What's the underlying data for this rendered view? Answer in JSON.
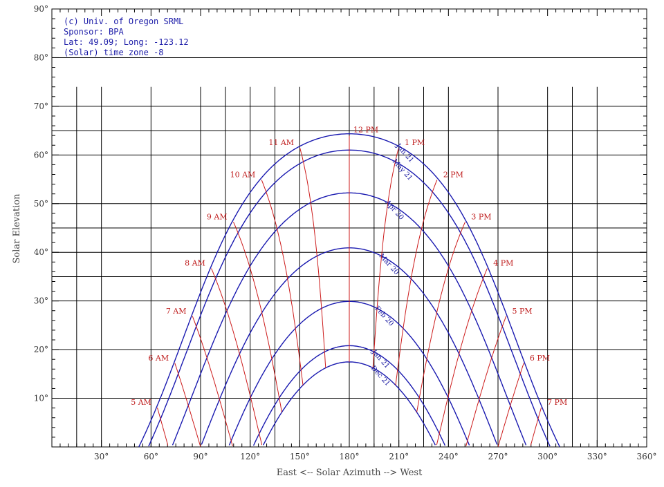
{
  "info": {
    "line1": "(c) Univ. of Oregon SRML",
    "line2": "Sponsor: BPA",
    "line3": "Lat: 49.09; Long: -123.12",
    "line4": "(Solar) time zone -8"
  },
  "chart_data": {
    "type": "line",
    "title": "",
    "xlabel": "East <-- Solar Azimuth --> West",
    "ylabel": "Solar Elevation",
    "xlim": [
      0,
      360
    ],
    "ylim": [
      0,
      90
    ],
    "xticks": [
      30,
      60,
      90,
      120,
      150,
      180,
      210,
      240,
      270,
      300,
      330,
      360
    ],
    "yticks": [
      10,
      20,
      30,
      40,
      50,
      60,
      70,
      80,
      90
    ],
    "degree_symbol": "°",
    "latitude": 49.09,
    "date_series": [
      {
        "name": "Jun 21",
        "declination": 23.44,
        "color": "#1a1ab0"
      },
      {
        "name": "May 21",
        "declination": 20.1,
        "color": "#1a1ab0"
      },
      {
        "name": "Apr 20",
        "declination": 11.3,
        "color": "#1a1ab0"
      },
      {
        "name": "Mar 20",
        "declination": 0.0,
        "color": "#1a1ab0"
      },
      {
        "name": "Feb 20",
        "declination": -11.0,
        "color": "#1a1ab0"
      },
      {
        "name": "Jan 21",
        "declination": -20.1,
        "color": "#1a1ab0"
      },
      {
        "name": "Dec 21",
        "declination": -23.44,
        "color": "#1a1ab0"
      }
    ],
    "hour_series": [
      {
        "name": "5 AM",
        "hour": 5
      },
      {
        "name": "6 AM",
        "hour": 6
      },
      {
        "name": "7 AM",
        "hour": 7
      },
      {
        "name": "8 AM",
        "hour": 8
      },
      {
        "name": "9 AM",
        "hour": 9
      },
      {
        "name": "10 AM",
        "hour": 10
      },
      {
        "name": "11 AM",
        "hour": 11
      },
      {
        "name": "12 PM",
        "hour": 12
      },
      {
        "name": "1 PM",
        "hour": 13
      },
      {
        "name": "2 PM",
        "hour": 14
      },
      {
        "name": "3 PM",
        "hour": 15
      },
      {
        "name": "4 PM",
        "hour": 16
      },
      {
        "name": "5 PM",
        "hour": 17
      },
      {
        "name": "6 PM",
        "hour": 18
      },
      {
        "name": "7 PM",
        "hour": 19
      }
    ],
    "hour_color": "#cc1a1a",
    "reference_lines": {
      "elevation": [
        65,
        45,
        35
      ],
      "azimuth": [
        15,
        105,
        135,
        195,
        225,
        315
      ]
    }
  }
}
